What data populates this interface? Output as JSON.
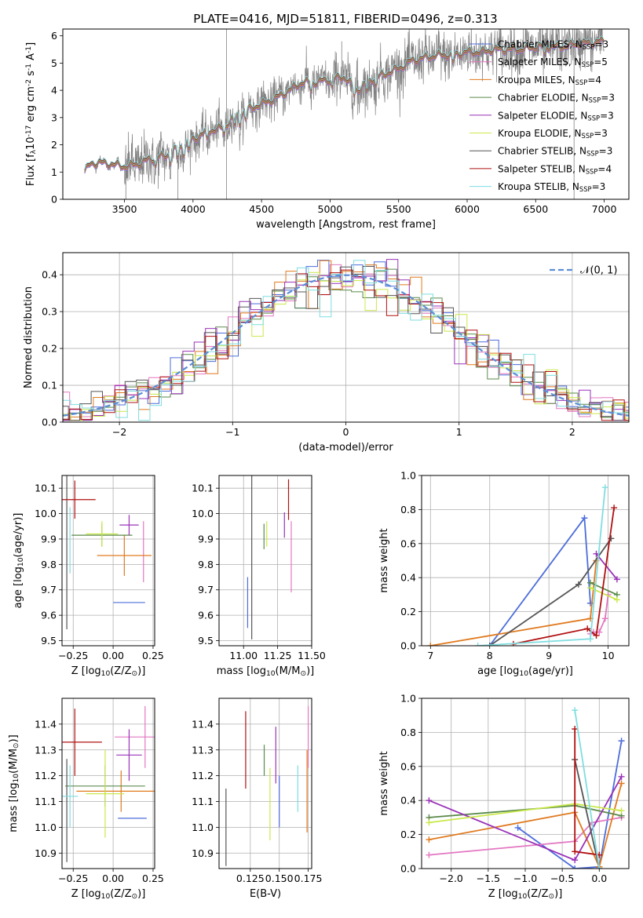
{
  "figure": {
    "title": "PLATE=0416, MJD=51811, FIBERID=0496, z=0.313",
    "colors": {
      "Chabrier MILES": "#4d6ddb",
      "Salpeter MILES": "#e377c2",
      "Kroupa MILES": "#e07a1f",
      "Chabrier ELODIE": "#5a8a4a",
      "Salpeter ELODIE": "#9a32b8",
      "Kroupa ELODIE": "#c9e84a",
      "Chabrier STELIB": "#555555",
      "Salpeter STELIB": "#b01010",
      "Kroupa STELIB": "#7fdde0",
      "data": "#808080",
      "normal": "#5b8ed6"
    }
  },
  "chart_data": [
    {
      "id": "spectrum",
      "type": "line",
      "title": "PLATE=0416, MJD=51811, FIBERID=0496, z=0.313",
      "xlabel": "wavelength [Angstrom, rest frame]",
      "ylabel": "Flux [f$_\\lambda$10$^{-17}$ erg cm$^{-2}$ s$^{-1}$ A$^{-1}$]",
      "xlim": [
        3050,
        7180
      ],
      "ylim": [
        0,
        6.25
      ],
      "xticks": [
        3500,
        4000,
        4500,
        5000,
        5500,
        6000,
        6500,
        7000
      ],
      "yticks": [
        0,
        1,
        2,
        3,
        4,
        5,
        6
      ],
      "grid": false,
      "legend_position": "top-right",
      "legend": [
        {
          "label": "Chabrier MILES, N$_{SSP}$=3",
          "color": "#4d6ddb"
        },
        {
          "label": "Salpeter MILES, N$_{SSP}$=5",
          "color": "#e377c2"
        },
        {
          "label": "Kroupa MILES, N$_{SSP}$=4",
          "color": "#e07a1f"
        },
        {
          "label": "Chabrier ELODIE, N$_{SSP}$=3",
          "color": "#5a8a4a"
        },
        {
          "label": "Salpeter ELODIE, N$_{SSP}$=3",
          "color": "#9a32b8"
        },
        {
          "label": "Kroupa ELODIE, N$_{SSP}$=3",
          "color": "#c9e84a"
        },
        {
          "label": "Chabrier STELIB, N$_{SSP}$=3",
          "color": "#555555"
        },
        {
          "label": "Salpeter STELIB, N$_{SSP}$=4",
          "color": "#b01010"
        },
        {
          "label": "Kroupa STELIB, N$_{SSP}$=3",
          "color": "#7fdde0"
        }
      ],
      "data_range": [
        3210,
        7000
      ],
      "model_points": [
        [
          3210,
          1.0
        ],
        [
          3250,
          1.3
        ],
        [
          3300,
          1.35
        ],
        [
          3400,
          1.3
        ],
        [
          3500,
          1.2
        ],
        [
          3600,
          1.3
        ],
        [
          3700,
          1.5
        ],
        [
          3800,
          1.6
        ],
        [
          3900,
          1.9
        ],
        [
          4000,
          2.2
        ],
        [
          4100,
          2.5
        ],
        [
          4200,
          2.6
        ],
        [
          4300,
          3.0
        ],
        [
          4400,
          3.3
        ],
        [
          4500,
          3.5
        ],
        [
          4600,
          3.7
        ],
        [
          4700,
          4.0
        ],
        [
          4800,
          4.3
        ],
        [
          4900,
          4.3
        ],
        [
          5000,
          4.4
        ],
        [
          5100,
          4.5
        ],
        [
          5200,
          4.0
        ],
        [
          5300,
          4.4
        ],
        [
          5400,
          4.6
        ],
        [
          5500,
          4.8
        ],
        [
          5600,
          5.1
        ],
        [
          5700,
          5.2
        ],
        [
          5800,
          5.3
        ],
        [
          5900,
          5.3
        ],
        [
          6000,
          5.4
        ],
        [
          6100,
          5.4
        ],
        [
          6200,
          5.5
        ],
        [
          6300,
          5.5
        ],
        [
          6400,
          5.5
        ],
        [
          6500,
          5.6
        ],
        [
          6600,
          5.6
        ],
        [
          6700,
          5.6
        ],
        [
          6800,
          5.7
        ],
        [
          6900,
          5.75
        ],
        [
          7000,
          5.8
        ]
      ]
    },
    {
      "id": "residual-histogram",
      "type": "line",
      "xlabel": "(data-model)/error",
      "ylabel": "Normed distribution",
      "xlim": [
        -2.5,
        2.5
      ],
      "ylim": [
        0,
        0.46
      ],
      "xticks": [
        -2,
        -1,
        0,
        1,
        2
      ],
      "xtick_labels": [
        "−2",
        "−1",
        "0",
        "1",
        "2"
      ],
      "yticks": [
        0.0,
        0.1,
        0.2,
        0.3,
        0.4
      ],
      "grid": true,
      "legend_position": "top-right",
      "legend": [
        {
          "label": "$\\mathcal{N}$(0, 1)",
          "style": "dashed",
          "color": "#5b8ed6"
        }
      ],
      "bin_width": 0.1
    },
    {
      "id": "age-vs-Z",
      "type": "scatter",
      "xlabel": "Z [log$_{10}$(Z/Z$_\\odot$)]",
      "ylabel": "age  [log$_{10}$(age/yr)]",
      "xlim": [
        -0.32,
        0.26
      ],
      "ylim": [
        9.48,
        10.15
      ],
      "xticks": [
        -0.25,
        0.0,
        0.25
      ],
      "xtick_labels": [
        "−0.25",
        "0.00",
        "0.25"
      ],
      "yticks": [
        9.5,
        9.6,
        9.7,
        9.8,
        9.9,
        10.0,
        10.1
      ],
      "grid": true,
      "errorbars": [
        {
          "model": "Chabrier MILES",
          "x": 0.1,
          "xerr": 0.1,
          "y": 9.65,
          "yerr": 0.0
        },
        {
          "model": "Salpeter MILES",
          "x": 0.19,
          "xerr": 0.0,
          "y": 9.85,
          "yerr": 0.12
        },
        {
          "model": "Kroupa MILES",
          "x": 0.07,
          "xerr": 0.17,
          "y": 9.835,
          "yerr": 0.08
        },
        {
          "model": "Chabrier ELODIE",
          "x": -0.07,
          "xerr": 0.19,
          "y": 9.915,
          "yerr": 0.045
        },
        {
          "model": "Salpeter ELODIE",
          "x": 0.1,
          "xerr": 0.06,
          "y": 9.955,
          "yerr": 0.04
        },
        {
          "model": "Kroupa ELODIE",
          "x": -0.07,
          "xerr": 0.1,
          "y": 9.92,
          "yerr": 0.05
        },
        {
          "model": "Chabrier STELIB",
          "x": -0.29,
          "xerr": 0.0,
          "y": 9.905,
          "yerr": 0.36
        },
        {
          "model": "Salpeter STELIB",
          "x": -0.24,
          "xerr": 0.13,
          "y": 10.055,
          "yerr": 0.075
        },
        {
          "model": "Kroupa STELIB",
          "x": -0.27,
          "xerr": 0.0,
          "y": 9.895,
          "yerr": 0.13
        }
      ]
    },
    {
      "id": "age-vs-mass",
      "type": "scatter",
      "xlabel": "mass [log$_{10}$(M/M$_\\odot$)]",
      "ylabel": "",
      "xlim": [
        10.82,
        11.5
      ],
      "ylim": [
        9.48,
        10.15
      ],
      "xticks": [
        11.0,
        11.25,
        11.5
      ],
      "xtick_labels": [
        "11.00",
        "11.25",
        "11.50"
      ],
      "yticks": [
        9.5,
        9.6,
        9.7,
        9.8,
        9.9,
        10.0,
        10.1
      ],
      "grid": true,
      "errorbars": [
        {
          "model": "Chabrier MILES",
          "x": 11.03,
          "xerr": 0.0,
          "y": 9.65,
          "yerr": 0.1
        },
        {
          "model": "Salpeter MILES",
          "x": 11.35,
          "xerr": 0.0,
          "y": 9.83,
          "yerr": 0.14
        },
        {
          "model": "Kroupa MILES",
          "x": 11.14,
          "xerr": 0.0,
          "y": 9.835,
          "yerr": 0.0
        },
        {
          "model": "Chabrier ELODIE",
          "x": 11.15,
          "xerr": 0.0,
          "y": 9.91,
          "yerr": 0.05
        },
        {
          "model": "Salpeter ELODIE",
          "x": 11.3,
          "xerr": 0.0,
          "y": 9.955,
          "yerr": 0.05
        },
        {
          "model": "Kroupa ELODIE",
          "x": 11.17,
          "xerr": 0.0,
          "y": 9.92,
          "yerr": 0.05
        },
        {
          "model": "Chabrier STELIB",
          "x": 11.06,
          "xerr": 0.0,
          "y": 9.905,
          "yerr": 0.4
        },
        {
          "model": "Salpeter STELIB",
          "x": 11.33,
          "xerr": 0.0,
          "y": 10.055,
          "yerr": 0.08
        },
        {
          "model": "Kroupa STELIB",
          "x": 11.12,
          "xerr": 0.0,
          "y": 9.895,
          "yerr": 0.0
        }
      ]
    },
    {
      "id": "mass-weight-vs-age",
      "type": "line",
      "xlabel": "age  [log$_{10}$(age/yr)]",
      "ylabel": "mass weight",
      "xlim": [
        6.85,
        10.35
      ],
      "ylim": [
        0,
        1.0
      ],
      "xticks": [
        7,
        8,
        9,
        10
      ],
      "yticks": [
        0.0,
        0.2,
        0.4,
        0.6,
        0.8,
        1.0
      ],
      "grid": true,
      "series": [
        {
          "model": "Chabrier MILES",
          "x": [
            8.0,
            9.6,
            9.7
          ],
          "y": [
            0.0,
            0.75,
            0.25
          ]
        },
        {
          "model": "Salpeter MILES",
          "x": [
            9.7,
            9.75,
            9.85,
            9.95,
            10.0
          ],
          "y": [
            0.07,
            0.08,
            0.08,
            0.16,
            0.3
          ]
        },
        {
          "model": "Kroupa MILES",
          "x": [
            7.0,
            9.7,
            9.8
          ],
          "y": [
            0.0,
            0.16,
            0.5
          ]
        },
        {
          "model": "Chabrier ELODIE",
          "x": [
            9.7,
            10.15
          ],
          "y": [
            0.37,
            0.3
          ]
        },
        {
          "model": "Salpeter ELODIE",
          "x": [
            9.8,
            10.15
          ],
          "y": [
            0.54,
            0.39
          ]
        },
        {
          "model": "Kroupa ELODIE",
          "x": [
            9.7,
            10.15
          ],
          "y": [
            0.34,
            0.27
          ]
        },
        {
          "model": "Chabrier STELIB",
          "x": [
            8.0,
            9.5,
            10.05
          ],
          "y": [
            0.0,
            0.36,
            0.63
          ]
        },
        {
          "model": "Salpeter STELIB",
          "x": [
            8.4,
            9.65,
            9.8,
            10.1
          ],
          "y": [
            0.01,
            0.1,
            0.06,
            0.81
          ]
        },
        {
          "model": "Kroupa STELIB",
          "x": [
            7.8,
            9.7,
            9.95
          ],
          "y": [
            0.0,
            0.04,
            0.93
          ]
        }
      ]
    },
    {
      "id": "mass-vs-Z",
      "type": "scatter",
      "xlabel": "Z [log$_{10}$(Z/Z$_\\odot$)]",
      "ylabel": "mass [log$_{10}$(M/M$_\\odot$)]",
      "xlim": [
        -0.32,
        0.26
      ],
      "ylim": [
        10.84,
        11.5
      ],
      "xticks": [
        -0.25,
        0.0,
        0.25
      ],
      "xtick_labels": [
        "−0.25",
        "0.00",
        "0.25"
      ],
      "yticks": [
        10.9,
        11.0,
        11.1,
        11.2,
        11.3,
        11.4
      ],
      "grid": true,
      "errorbars": [
        {
          "model": "Chabrier MILES",
          "x": 0.12,
          "xerr": 0.09,
          "y": 11.035,
          "yerr": 0.0
        },
        {
          "model": "Salpeter MILES",
          "x": 0.2,
          "xerr": 0.19,
          "y": 11.35,
          "yerr": 0.12
        },
        {
          "model": "Kroupa MILES",
          "x": 0.05,
          "xerr": 0.28,
          "y": 11.14,
          "yerr": 0.08
        },
        {
          "model": "Chabrier ELODIE",
          "x": -0.05,
          "xerr": 0.25,
          "y": 11.16,
          "yerr": 0.08
        },
        {
          "model": "Salpeter ELODIE",
          "x": 0.1,
          "xerr": 0.08,
          "y": 11.28,
          "yerr": 0.1
        },
        {
          "model": "Kroupa ELODIE",
          "x": -0.05,
          "xerr": 0.12,
          "y": 11.13,
          "yerr": 0.17
        },
        {
          "model": "Chabrier STELIB",
          "x": -0.29,
          "xerr": 0.0,
          "y": 11.065,
          "yerr": 0.2
        },
        {
          "model": "Salpeter STELIB",
          "x": -0.24,
          "xerr": 0.17,
          "y": 11.33,
          "yerr": 0.13
        },
        {
          "model": "Kroupa STELIB",
          "x": -0.27,
          "xerr": 0.05,
          "y": 11.12,
          "yerr": 0.12
        }
      ]
    },
    {
      "id": "mass-vs-EBV",
      "type": "scatter",
      "xlabel": "E(B-V)",
      "ylabel": "",
      "xlim": [
        0.098,
        0.178
      ],
      "ylim": [
        10.84,
        11.5
      ],
      "xticks": [
        0.125,
        0.15,
        0.175
      ],
      "xtick_labels": [
        "0.125",
        "0.150",
        "0.175"
      ],
      "yticks": [
        10.9,
        11.0,
        11.1,
        11.2,
        11.3,
        11.4
      ],
      "grid": true,
      "errorbars": [
        {
          "model": "Chabrier STELIB",
          "x": 0.104,
          "xerr": 0.0,
          "y": 11.0,
          "yerr": 0.15
        },
        {
          "model": "Salpeter STELIB",
          "x": 0.121,
          "xerr": 0.0,
          "y": 11.3,
          "yerr": 0.15
        },
        {
          "model": "Kroupa ELODIE",
          "x": 0.142,
          "xerr": 0.0,
          "y": 11.09,
          "yerr": 0.14
        },
        {
          "model": "Salpeter ELODIE",
          "x": 0.147,
          "xerr": 0.0,
          "y": 11.28,
          "yerr": 0.11
        },
        {
          "model": "Chabrier ELODIE",
          "x": 0.137,
          "xerr": 0.0,
          "y": 11.26,
          "yerr": 0.06
        },
        {
          "model": "Chabrier MILES",
          "x": 0.15,
          "xerr": 0.0,
          "y": 11.1,
          "yerr": 0.1
        },
        {
          "model": "Kroupa STELIB",
          "x": 0.166,
          "xerr": 0.0,
          "y": 11.15,
          "yerr": 0.09
        },
        {
          "model": "Kroupa MILES",
          "x": 0.174,
          "xerr": 0.0,
          "y": 11.14,
          "yerr": 0.16
        },
        {
          "model": "Salpeter MILES",
          "x": 0.175,
          "xerr": 0.0,
          "y": 11.35,
          "yerr": 0.12
        }
      ]
    },
    {
      "id": "mass-weight-vs-Z",
      "type": "line",
      "xlabel": "Z [log$_{10}$(Z/Z$_\\odot$)]",
      "ylabel": "mass weight",
      "xlim": [
        -2.4,
        0.4
      ],
      "ylim": [
        0,
        1.0
      ],
      "xticks": [
        -2.0,
        -1.5,
        -1.0,
        -0.5,
        0.0
      ],
      "xtick_labels": [
        "−2.0",
        "−1.5",
        "−1.0",
        "−0.5",
        "0.0"
      ],
      "yticks": [
        0.0,
        0.2,
        0.4,
        0.6,
        0.8,
        1.0
      ],
      "grid": true,
      "series": [
        {
          "model": "Chabrier MILES",
          "x": [
            -1.1,
            -0.33,
            0.0,
            0.3
          ],
          "y": [
            0.24,
            0.0,
            0.01,
            0.75
          ]
        },
        {
          "model": "Salpeter MILES",
          "x": [
            -2.3,
            -0.33,
            -0.1,
            0.3
          ],
          "y": [
            0.08,
            0.16,
            0.27,
            0.3
          ]
        },
        {
          "model": "Kroupa MILES",
          "x": [
            -2.3,
            -0.33,
            0.0,
            0.3
          ],
          "y": [
            0.17,
            0.33,
            0.01,
            0.5
          ]
        },
        {
          "model": "Chabrier ELODIE",
          "x": [
            -2.3,
            -0.33,
            0.3
          ],
          "y": [
            0.3,
            0.37,
            0.31
          ]
        },
        {
          "model": "Salpeter ELODIE",
          "x": [
            -2.3,
            -0.33,
            0.3
          ],
          "y": [
            0.4,
            0.05,
            0.54
          ]
        },
        {
          "model": "Kroupa ELODIE",
          "x": [
            -2.3,
            -0.33,
            0.3
          ],
          "y": [
            0.27,
            0.38,
            0.34
          ]
        },
        {
          "model": "Chabrier STELIB",
          "x": [
            -0.33,
            0.0
          ],
          "y": [
            0.64,
            0.0
          ]
        },
        {
          "model": "Salpeter STELIB",
          "x": [
            -0.33,
            -0.33,
            0.0
          ],
          "y": [
            0.82,
            0.1,
            0.08
          ]
        },
        {
          "model": "Kroupa STELIB",
          "x": [
            -0.33,
            0.0
          ],
          "y": [
            0.93,
            0.0
          ]
        }
      ]
    }
  ]
}
